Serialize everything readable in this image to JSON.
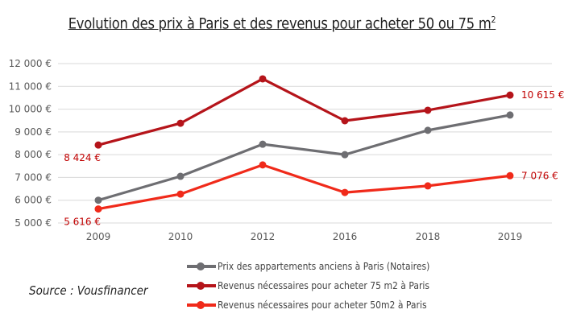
{
  "chart_data": {
    "type": "line",
    "title": "Evolution des prix à Paris et des revenus pour acheter 50 ou 75 m",
    "title_superscript": "2",
    "xlabel": "",
    "ylabel": "",
    "categories": [
      "2009",
      "2010",
      "2012",
      "2016",
      "2018",
      "2019"
    ],
    "ylim": [
      5000,
      12000
    ],
    "yticks": [
      5000,
      6000,
      7000,
      8000,
      9000,
      10000,
      11000,
      12000
    ],
    "ytick_labels": [
      "5 000 €",
      "6 000 €",
      "7 000 €",
      "8 000 €",
      "9 000 €",
      "10 000 €",
      "11 000 €",
      "12 000 €"
    ],
    "grid": true,
    "legend_position": "bottom",
    "series": [
      {
        "name": "Prix des appartements anciens à Paris (Notaires)",
        "color": "#6e6e72",
        "values": [
          6000,
          7050,
          8460,
          8000,
          9070,
          9740
        ]
      },
      {
        "name": "Revenus nécessaires pour acheter 75 m2 à Paris",
        "color": "#b5141a",
        "values": [
          8424,
          9380,
          11330,
          9490,
          9950,
          10615
        ]
      },
      {
        "name": "Revenus nécessaires pour acheter 50m2 à Paris",
        "color": "#f02a1a",
        "values": [
          5616,
          6270,
          7550,
          6340,
          6630,
          7076
        ]
      }
    ],
    "annotations": [
      {
        "series": 1,
        "index": 0,
        "text": "8 424 €",
        "placement": "below-left"
      },
      {
        "series": 1,
        "index": 5,
        "text": "10 615 €",
        "placement": "right"
      },
      {
        "series": 2,
        "index": 0,
        "text": "5 616 €",
        "placement": "below-left"
      },
      {
        "series": 2,
        "index": 5,
        "text": "7 076 €",
        "placement": "right"
      }
    ],
    "annotation_color": "#c00000"
  },
  "source": "Source : Vousfinancer"
}
